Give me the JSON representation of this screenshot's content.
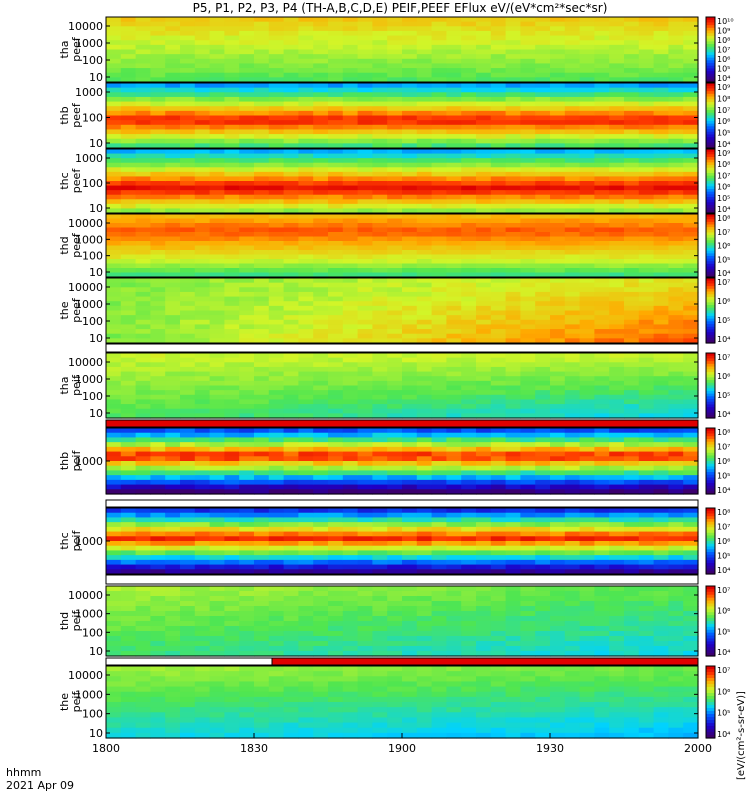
{
  "title": "P5, P1, P2, P3, P4 (TH-A,B,C,D,E) PEIF,PEEF EFlux eV/(eV*cm²*sec*sr)",
  "time_axis": {
    "label_line1": "hhmm",
    "label_line2": "2021 Apr 09"
  },
  "colorbar_units": "[eV/(cm²-s-sr-eV)]",
  "colors": {
    "black": "#000000",
    "white": "#ffffff",
    "red": "#e00000"
  },
  "chart_data": {
    "type": "heatmap",
    "x_unit": "hhmm",
    "x_range": [
      "1800",
      "2000"
    ],
    "x_ticks": [
      "1800",
      "1830",
      "1900",
      "1930",
      "2000"
    ],
    "y_scale": "log",
    "colorscale": "rainbow (purple-blue-green-yellow-red)",
    "panels": [
      {
        "probe": "tha",
        "label": [
          "tha",
          "peef"
        ],
        "yticks": [
          "10",
          "100",
          "1000",
          "10000"
        ],
        "cbar_ticks": [
          "10⁴",
          "10⁵",
          "10⁶",
          "10⁷",
          "10⁸",
          "10⁹",
          "10¹⁰"
        ]
      },
      {
        "probe": "thb",
        "label": [
          "thb",
          "peef"
        ],
        "yticks": [
          "10",
          "100",
          "1000"
        ],
        "cbar_ticks": [
          "10⁴",
          "10⁵",
          "10⁶",
          "10⁷",
          "10⁸",
          "10⁹"
        ]
      },
      {
        "probe": "thc",
        "label": [
          "thc",
          "peef"
        ],
        "yticks": [
          "10",
          "100",
          "1000"
        ],
        "cbar_ticks": [
          "10⁴",
          "10⁵",
          "10⁶",
          "10⁷",
          "10⁸",
          "10⁹"
        ]
      },
      {
        "probe": "thd",
        "label": [
          "thd",
          "peef"
        ],
        "yticks": [
          "10",
          "100",
          "1000",
          "10000"
        ],
        "cbar_ticks": [
          "10⁴",
          "10⁵",
          "10⁶",
          "10⁷",
          "10⁸"
        ]
      },
      {
        "probe": "the",
        "label": [
          "the",
          "peef"
        ],
        "yticks": [
          "10",
          "100",
          "1000",
          "10000"
        ],
        "cbar_ticks": [
          "10⁴",
          "10⁵",
          "10⁶",
          "10⁷"
        ]
      },
      {
        "probe": "tha",
        "label": [
          "tha",
          "peif"
        ],
        "yticks": [
          "10",
          "100",
          "1000",
          "10000"
        ],
        "cbar_ticks": [
          "10⁴",
          "10⁵",
          "10⁶",
          "10⁷"
        ]
      },
      {
        "probe": "thb",
        "label": [
          "thb",
          "peif"
        ],
        "yticks": [
          "1000"
        ],
        "cbar_ticks": [
          "10⁴",
          "10⁵",
          "10⁶",
          "10⁷",
          "10⁸"
        ]
      },
      {
        "probe": "thc",
        "label": [
          "thc",
          "peif"
        ],
        "yticks": [
          "1000"
        ],
        "cbar_ticks": [
          "10⁴",
          "10⁵",
          "10⁶",
          "10⁷",
          "10⁸"
        ]
      },
      {
        "probe": "thd",
        "label": [
          "thd",
          "peif"
        ],
        "yticks": [
          "10",
          "100",
          "1000",
          "10000"
        ],
        "cbar_ticks": [
          "10⁴",
          "10⁵",
          "10⁶",
          "10⁷"
        ]
      },
      {
        "probe": "the",
        "label": [
          "the",
          "peif"
        ],
        "yticks": [
          "10",
          "100",
          "1000",
          "10000"
        ],
        "cbar_ticks": [
          "10⁴",
          "10⁵",
          "10⁶",
          "10⁷"
        ]
      }
    ]
  }
}
